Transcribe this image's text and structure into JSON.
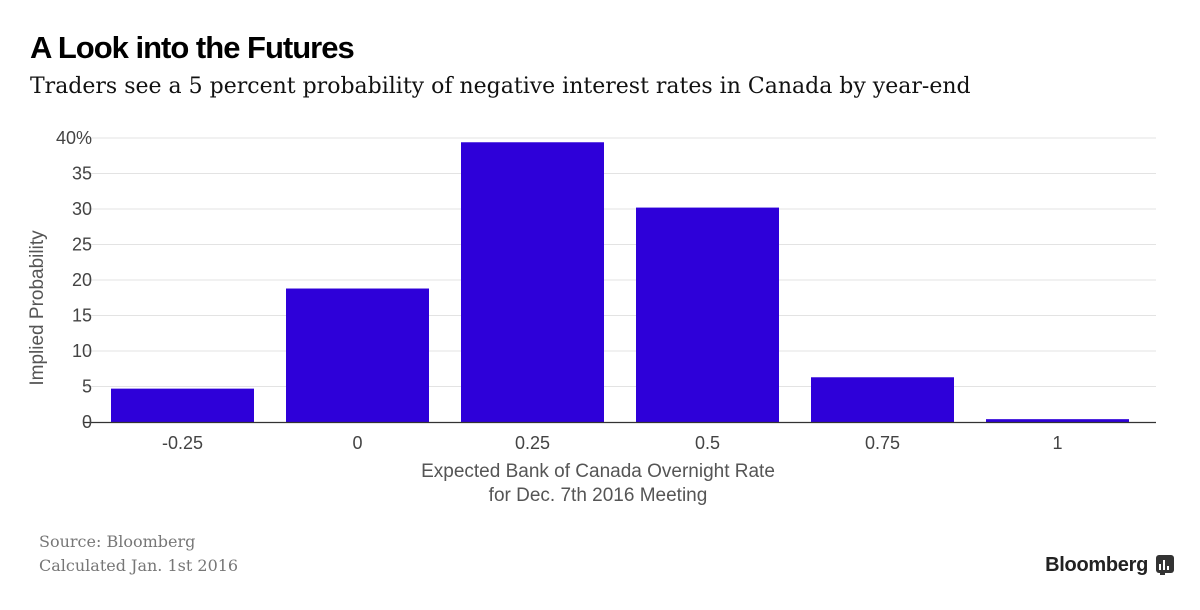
{
  "title": "A Look into the Futures",
  "subtitle": "Traders see a 5 percent probability of negative interest rates in Canada by year-end",
  "footer": {
    "source": "Source: Bloomberg",
    "calculated": "Calculated Jan. 1st 2016",
    "brand": "Bloomberg"
  },
  "colors": {
    "bar": "#2e00d9",
    "grid": "#e3e3e3",
    "axis": "#333333"
  },
  "icons": {
    "brand_icon": "chart-icon"
  },
  "chart_data": {
    "type": "bar",
    "categories": [
      "-0.25",
      "0",
      "0.25",
      "0.5",
      "0.75",
      "1"
    ],
    "values": [
      4.7,
      18.8,
      39.4,
      30.2,
      6.3,
      0.4
    ],
    "xlabel": [
      "Expected Bank of Canada Overnight Rate",
      "for Dec. 7th 2016 Meeting"
    ],
    "ylabel": "Implied Probability",
    "ylim": [
      0,
      40
    ],
    "yticks": [
      0,
      5,
      10,
      15,
      20,
      25,
      30,
      35,
      40
    ],
    "ytick_labels": [
      "0",
      "5",
      "10",
      "15",
      "20",
      "25",
      "30",
      "35",
      "40%"
    ],
    "grid": true,
    "legend": "none"
  }
}
